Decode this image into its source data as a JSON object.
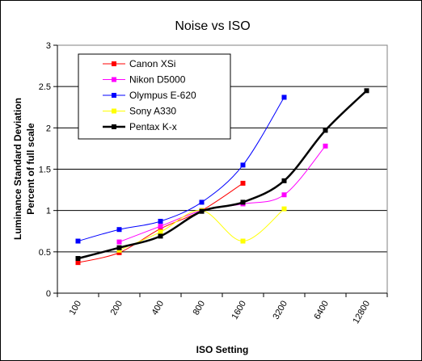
{
  "chart_data": {
    "type": "line",
    "title": "Noise vs ISO",
    "xlabel": "ISO Setting",
    "ylabel_lines": [
      "Luminance Standard Deviation",
      "Percent of full scale"
    ],
    "categories": [
      "100",
      "200",
      "400",
      "800",
      "1600",
      "3200",
      "6400",
      "12800"
    ],
    "ylim": [
      0,
      3
    ],
    "yticks": [
      "0",
      "0.5",
      "1",
      "1.5",
      "2",
      "2.5",
      "3"
    ],
    "ytick_values": [
      0,
      0.5,
      1,
      1.5,
      2,
      2.5,
      3
    ],
    "grid": true,
    "legend_position": "top-left",
    "series": [
      {
        "name": "Canon XSi",
        "color": "#ff0000",
        "values": [
          0.37,
          0.49,
          0.78,
          1.0,
          1.33,
          null,
          null,
          null
        ]
      },
      {
        "name": "Nikon D5000",
        "color": "#ff00ff",
        "values": [
          null,
          0.62,
          0.81,
          1.0,
          1.08,
          1.19,
          1.78,
          null
        ]
      },
      {
        "name": "Olympus E-620",
        "color": "#0000ff",
        "values": [
          0.63,
          0.77,
          0.87,
          1.1,
          1.55,
          2.37,
          null,
          null
        ]
      },
      {
        "name": "Sony A330",
        "color": "#ffff00",
        "values": [
          null,
          0.52,
          0.74,
          1.0,
          0.63,
          1.02,
          null,
          null
        ]
      },
      {
        "name": "Pentax K-x",
        "color": "#000000",
        "values": [
          0.42,
          0.55,
          0.69,
          0.99,
          1.1,
          1.36,
          1.97,
          2.45
        ]
      }
    ]
  }
}
